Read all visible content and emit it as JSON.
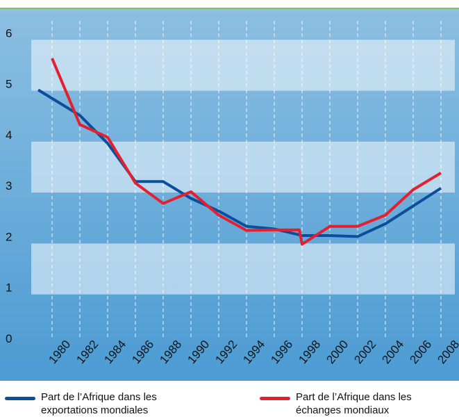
{
  "chart_data": {
    "type": "line",
    "xlim": [
      1978.5,
      2009
    ],
    "xticks": [
      1980,
      1982,
      1984,
      1986,
      1988,
      1990,
      1992,
      1994,
      1996,
      1998,
      2000,
      2002,
      2004,
      2006,
      2008
    ],
    "ylim": [
      0,
      6.4
    ],
    "yticks": [
      0,
      1,
      2,
      3,
      4,
      5,
      6
    ],
    "grid": true,
    "series": [
      {
        "name": "Part de l’Afrique dans les exportations mondiales",
        "color": "#0b4f9c",
        "x": [
          1979,
          1982,
          1984,
          1986,
          1988,
          1990,
          1992,
          1994,
          1996,
          1998,
          2000,
          2002,
          2004,
          2006,
          2008
        ],
        "values": [
          4.88,
          4.38,
          3.83,
          3.08,
          3.08,
          2.75,
          2.5,
          2.2,
          2.15,
          2.02,
          2.02,
          2.0,
          2.25,
          2.6,
          2.95
        ]
      },
      {
        "name": "Part de l’Afrique dans les échanges mondiaux",
        "color": "#e4202e",
        "x": [
          1980,
          1982,
          1984,
          1986,
          1988,
          1990,
          1992,
          1994,
          1996,
          1997.8,
          1998,
          2000,
          2002,
          2004,
          2006,
          2008
        ],
        "values": [
          5.5,
          4.2,
          3.95,
          3.05,
          2.65,
          2.88,
          2.42,
          2.12,
          2.13,
          2.13,
          1.85,
          2.2,
          2.2,
          2.42,
          2.92,
          3.25
        ]
      }
    ]
  }
}
